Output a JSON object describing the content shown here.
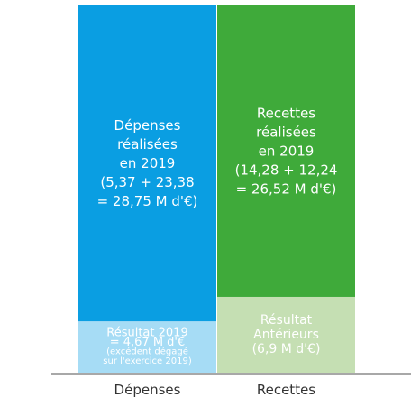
{
  "chart_data": {
    "type": "bar",
    "stacked": true,
    "categories": [
      "Dépenses",
      "Recettes"
    ],
    "series": [
      {
        "key": "main",
        "values": [
          28.75,
          26.52
        ],
        "colors": [
          "#0a9ee2",
          "#3faa3a"
        ],
        "labels": [
          [
            "Dépenses",
            "réalisées",
            "en 2019",
            "(5,37 + 23,38",
            "= 28,75 M d'€)"
          ],
          [
            "Recettes",
            "réalisées",
            "en 2019",
            "(14,28 + 12,24",
            "= 26,52 M d'€)"
          ]
        ]
      },
      {
        "key": "complement",
        "values": [
          4.67,
          6.9
        ],
        "colors": [
          "#a6dcf5",
          "#c5dfb3"
        ],
        "labels": [
          [
            "Résultat 2019",
            "= 4,67 M d'€",
            "(excédent dégagé",
            "sur l'exercice 2019)"
          ],
          [
            "Résultat",
            "Antérieurs",
            "(6,9 M d'€)"
          ]
        ]
      }
    ]
  }
}
